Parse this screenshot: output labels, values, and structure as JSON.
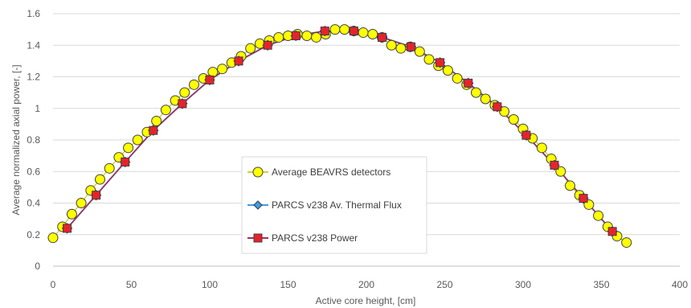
{
  "chart_data": {
    "type": "line",
    "xlabel": "Active core height, [cm]",
    "ylabel": "Average normalized axial power, [-]",
    "xlim": [
      0,
      400
    ],
    "ylim": [
      0,
      1.6
    ],
    "xticks": [
      "0",
      "50",
      "100",
      "150",
      "200",
      "250",
      "300",
      "350",
      "400"
    ],
    "yticks": [
      "0",
      "0.2",
      "0.4",
      "0.6",
      "0.8",
      "1",
      "1.2",
      "1.4",
      "1.6"
    ],
    "grid": "horizontal",
    "legend_position": "center-left",
    "series": [
      {
        "name": "Average BEAVRS detectors",
        "marker": "circle",
        "color": "#ffff00",
        "x": [
          0,
          6,
          12,
          18,
          24,
          30,
          36,
          42,
          48,
          54,
          60,
          66,
          72,
          78,
          84,
          90,
          96,
          102,
          108,
          114,
          120,
          126,
          132,
          138,
          144,
          150,
          156,
          162,
          168,
          174,
          180,
          186,
          192,
          198,
          204,
          210,
          216,
          222,
          228,
          234,
          240,
          246,
          252,
          258,
          264,
          270,
          276,
          282,
          288,
          294,
          300,
          306,
          312,
          318,
          324,
          330,
          336,
          342,
          348,
          354,
          360,
          366
        ],
        "y": [
          0.18,
          0.25,
          0.33,
          0.4,
          0.48,
          0.55,
          0.62,
          0.69,
          0.75,
          0.8,
          0.85,
          0.92,
          0.99,
          1.05,
          1.1,
          1.15,
          1.19,
          1.23,
          1.25,
          1.29,
          1.33,
          1.38,
          1.41,
          1.43,
          1.45,
          1.46,
          1.47,
          1.46,
          1.45,
          1.47,
          1.5,
          1.5,
          1.49,
          1.48,
          1.47,
          1.45,
          1.4,
          1.38,
          1.39,
          1.36,
          1.31,
          1.27,
          1.24,
          1.19,
          1.15,
          1.1,
          1.06,
          1.02,
          0.98,
          0.93,
          0.87,
          0.81,
          0.75,
          0.68,
          0.6,
          0.51,
          0.45,
          0.39,
          0.32,
          0.25,
          0.19,
          0.15
        ]
      },
      {
        "name": "PARCS v238 Av. Thermal Flux",
        "marker": "diamond",
        "color": "#4a9bd6",
        "x": [
          9,
          27.5,
          46,
          64,
          82.5,
          100,
          118.5,
          137,
          155,
          173.5,
          192,
          210,
          228.5,
          247,
          265,
          283.5,
          302,
          320,
          338.5,
          357
        ],
        "y": [
          0.24,
          0.45,
          0.66,
          0.86,
          1.03,
          1.18,
          1.3,
          1.4,
          1.46,
          1.49,
          1.49,
          1.45,
          1.39,
          1.29,
          1.16,
          1.01,
          0.83,
          0.64,
          0.43,
          0.22
        ]
      },
      {
        "name": "PARCS v238 Power",
        "marker": "square",
        "color": "#e8222b",
        "x": [
          9,
          27.5,
          46,
          64,
          82.5,
          100,
          118.5,
          137,
          155,
          173.5,
          192,
          210,
          228.5,
          247,
          265,
          283.5,
          302,
          320,
          338.5,
          357
        ],
        "y": [
          0.24,
          0.45,
          0.66,
          0.86,
          1.03,
          1.18,
          1.3,
          1.4,
          1.46,
          1.49,
          1.49,
          1.45,
          1.39,
          1.29,
          1.16,
          1.01,
          0.83,
          0.64,
          0.43,
          0.22
        ]
      }
    ]
  }
}
